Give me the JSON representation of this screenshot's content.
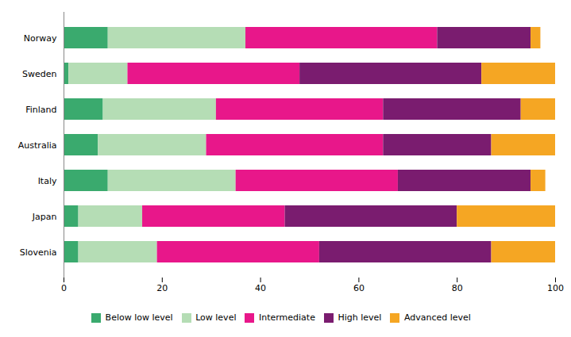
{
  "chart_data": {
    "type": "bar",
    "orientation": "horizontal",
    "stacked": true,
    "categories": [
      "Norway",
      "Sweden",
      "Finland",
      "Australia",
      "Italy",
      "Japan",
      "Slovenia"
    ],
    "series": [
      {
        "name": "Below low level",
        "color": "#3aaa6e",
        "values": [
          9,
          1,
          8,
          7,
          9,
          3,
          3
        ]
      },
      {
        "name": "Low level",
        "color": "#b5ddb5",
        "values": [
          28,
          12,
          23,
          22,
          26,
          13,
          16
        ]
      },
      {
        "name": "Intermediate",
        "color": "#e8178a",
        "values": [
          39,
          35,
          34,
          36,
          33,
          29,
          33
        ]
      },
      {
        "name": "High level",
        "color": "#7a1c6f",
        "values": [
          19,
          37,
          28,
          22,
          27,
          35,
          35
        ]
      },
      {
        "name": "Advanced level",
        "color": "#f5a623",
        "values": [
          2,
          15,
          7,
          13,
          3,
          20,
          13
        ]
      }
    ],
    "xlim": [
      0,
      100
    ],
    "xticks": [
      0,
      20,
      40,
      60,
      80,
      100
    ],
    "grid": false,
    "legend": "bottom"
  }
}
